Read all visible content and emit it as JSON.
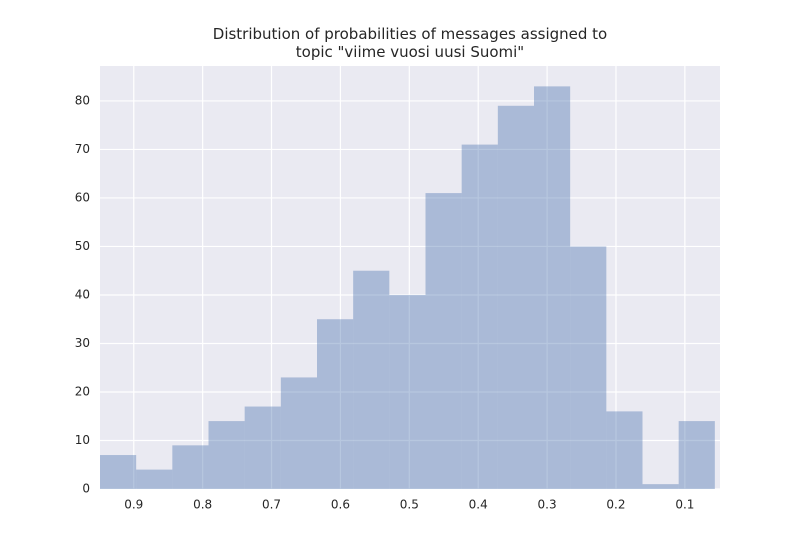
{
  "chart_data": {
    "type": "histogram",
    "title": "Distribution of probabilities of messages assigned to\ntopic \"viime vuosi uusi Suomi\"",
    "bins": [
      0.949,
      0.8965,
      0.844,
      0.7915,
      0.739,
      0.6865,
      0.634,
      0.5815,
      0.529,
      0.4765,
      0.424,
      0.3715,
      0.319,
      0.2665,
      0.214,
      0.1615,
      0.109,
      0.0565
    ],
    "counts": [
      7,
      4,
      9,
      14,
      17,
      23,
      35,
      45,
      40,
      61,
      71,
      79,
      83,
      50,
      16,
      1,
      14
    ],
    "color": "#4c72b0",
    "opacity": 0.4,
    "background": "#eaeaf2",
    "xlim": [
      0.949,
      0.049
    ],
    "xticks": [
      0.9,
      0.8,
      0.7,
      0.6,
      0.5,
      0.4,
      0.3,
      0.2,
      0.1
    ],
    "ylim": [
      0,
      87.2
    ],
    "yticks": [
      0,
      10,
      20,
      30,
      40,
      50,
      60,
      70,
      80
    ],
    "grid": true
  }
}
